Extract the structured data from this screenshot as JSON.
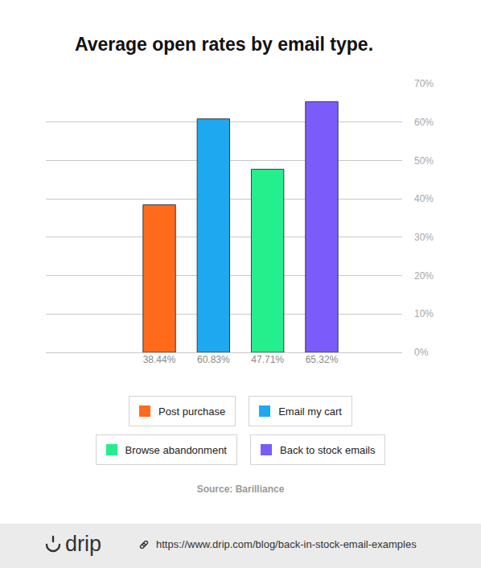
{
  "chart_data": {
    "type": "bar",
    "title": "Average open rates by email type.",
    "categories": [
      "Post purchase",
      "Email my cart",
      "Browse abandonment",
      "Back to stock emails"
    ],
    "values": [
      38.44,
      60.83,
      47.71,
      65.32
    ],
    "value_labels": [
      "38.44%",
      "60.83%",
      "47.71%",
      "65.32%"
    ],
    "data_labels": true,
    "colors": [
      "#ff6b1a",
      "#1ea8f0",
      "#25ee8c",
      "#7b5cfa"
    ],
    "ylim": [
      0,
      70
    ],
    "yticks": [
      {
        "value": 0,
        "label": "0%"
      },
      {
        "value": 10,
        "label": "10%"
      },
      {
        "value": 20,
        "label": "20%"
      },
      {
        "value": 30,
        "label": "30%"
      },
      {
        "value": 40,
        "label": "40%"
      },
      {
        "value": 50,
        "label": "50%"
      },
      {
        "value": 60,
        "label": "60%"
      },
      {
        "value": 70,
        "label": "70%"
      }
    ],
    "grid": true,
    "legend": "bottom",
    "source": "Source: Barilliance",
    "footer": {
      "logo": "drip",
      "url": "https://www.drip.com/blog/back-in-stock-email-examples"
    }
  }
}
